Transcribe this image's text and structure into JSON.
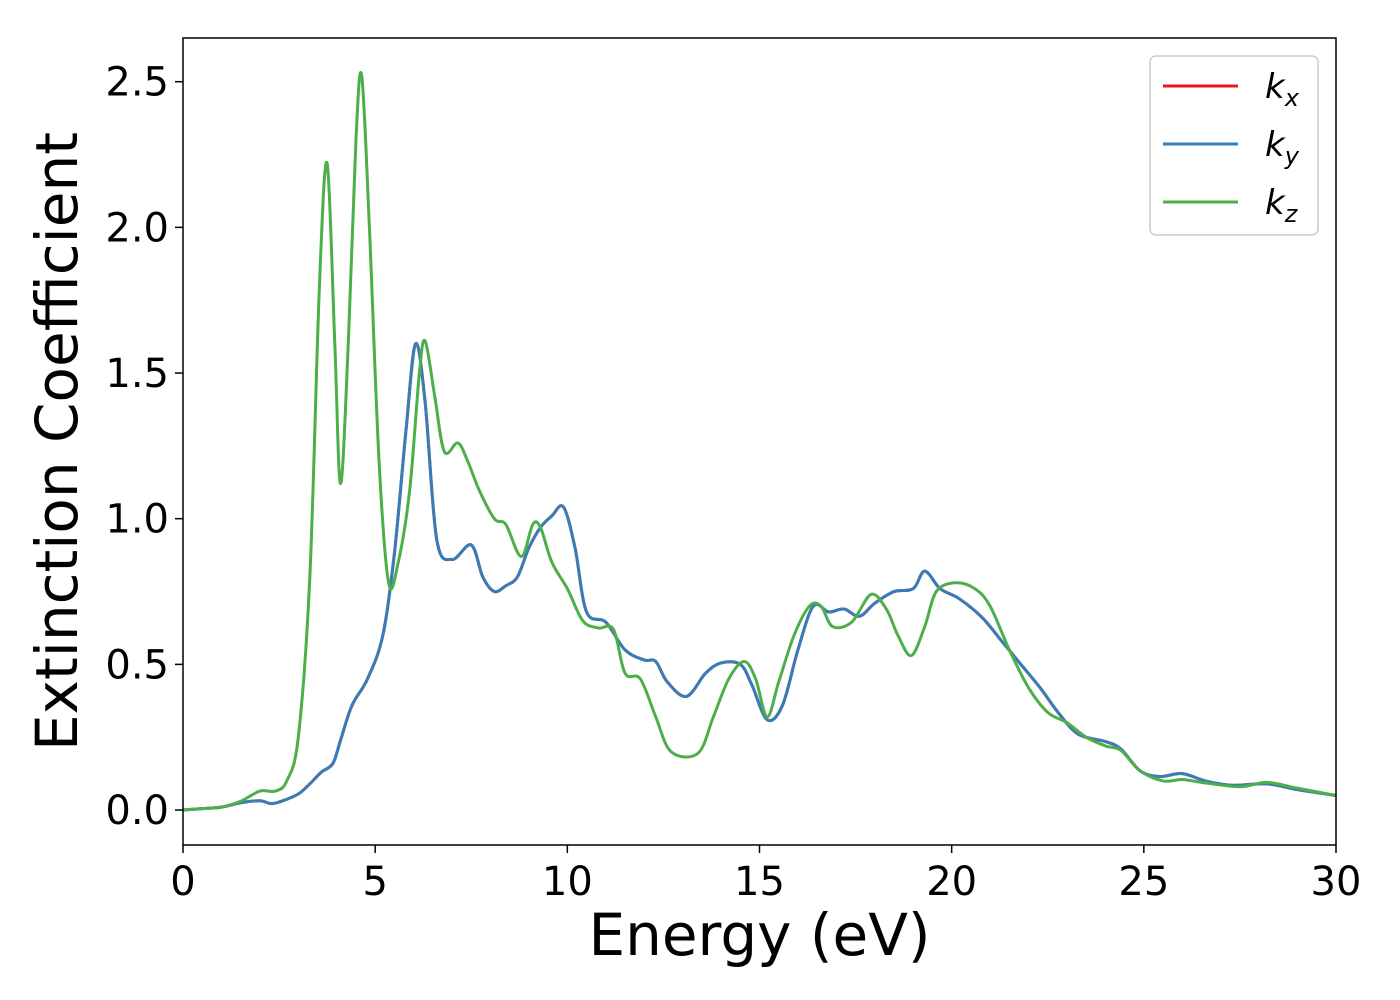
{
  "chart_data": {
    "type": "line",
    "title": "",
    "xlabel": "Energy (eV)",
    "ylabel": "Extinction Coefficient",
    "xlim": [
      0,
      30
    ],
    "ylim": [
      -0.12,
      2.65
    ],
    "xticks": [
      0,
      5,
      10,
      15,
      20,
      25,
      30
    ],
    "yticks": [
      0.0,
      0.5,
      1.0,
      1.5,
      2.0,
      2.5
    ],
    "xtick_labels": [
      "0",
      "5",
      "10",
      "15",
      "20",
      "25",
      "30"
    ],
    "ytick_labels": [
      "0.0",
      "0.5",
      "1.0",
      "1.5",
      "2.0",
      "2.5"
    ],
    "grid": false,
    "legend_position": "top-right",
    "series": [
      {
        "name": "k_x",
        "label_main": "k",
        "label_sub": "x",
        "color": "#e41a1c",
        "points": [
          [
            0,
            0
          ],
          [
            0.5,
            0.005
          ],
          [
            1,
            0.01
          ],
          [
            1.5,
            0.025
          ],
          [
            2,
            0.032
          ],
          [
            2.3,
            0.022
          ],
          [
            2.6,
            0.032
          ],
          [
            3,
            0.055
          ],
          [
            3.3,
            0.09
          ],
          [
            3.6,
            0.13
          ],
          [
            3.9,
            0.16
          ],
          [
            4.1,
            0.24
          ],
          [
            4.4,
            0.36
          ],
          [
            4.8,
            0.45
          ],
          [
            5.2,
            0.6
          ],
          [
            5.5,
            0.88
          ],
          [
            5.8,
            1.3
          ],
          [
            6.05,
            1.6
          ],
          [
            6.3,
            1.4
          ],
          [
            6.6,
            0.93
          ],
          [
            7.0,
            0.86
          ],
          [
            7.5,
            0.91
          ],
          [
            7.8,
            0.8
          ],
          [
            8.1,
            0.75
          ],
          [
            8.4,
            0.77
          ],
          [
            8.7,
            0.8
          ],
          [
            9.0,
            0.9
          ],
          [
            9.3,
            0.97
          ],
          [
            9.6,
            1.01
          ],
          [
            9.9,
            1.04
          ],
          [
            10.2,
            0.9
          ],
          [
            10.5,
            0.68
          ],
          [
            11.0,
            0.645
          ],
          [
            11.5,
            0.55
          ],
          [
            12.0,
            0.515
          ],
          [
            12.3,
            0.51
          ],
          [
            12.6,
            0.44
          ],
          [
            13.1,
            0.39
          ],
          [
            13.6,
            0.47
          ],
          [
            14.0,
            0.505
          ],
          [
            14.5,
            0.5
          ],
          [
            14.8,
            0.43
          ],
          [
            15.2,
            0.31
          ],
          [
            15.6,
            0.36
          ],
          [
            16.0,
            0.55
          ],
          [
            16.4,
            0.7
          ],
          [
            16.8,
            0.68
          ],
          [
            17.2,
            0.69
          ],
          [
            17.6,
            0.665
          ],
          [
            18.0,
            0.71
          ],
          [
            18.5,
            0.75
          ],
          [
            19.0,
            0.76
          ],
          [
            19.3,
            0.82
          ],
          [
            19.7,
            0.76
          ],
          [
            20.2,
            0.725
          ],
          [
            20.8,
            0.66
          ],
          [
            21.3,
            0.58
          ],
          [
            21.8,
            0.5
          ],
          [
            22.3,
            0.42
          ],
          [
            22.8,
            0.33
          ],
          [
            23.3,
            0.26
          ],
          [
            24.0,
            0.235
          ],
          [
            24.4,
            0.21
          ],
          [
            24.9,
            0.135
          ],
          [
            25.4,
            0.115
          ],
          [
            26.0,
            0.125
          ],
          [
            26.6,
            0.1
          ],
          [
            27.3,
            0.085
          ],
          [
            28.2,
            0.09
          ],
          [
            29.0,
            0.07
          ],
          [
            30,
            0.05
          ]
        ]
      },
      {
        "name": "k_y",
        "label_main": "k",
        "label_sub": "y",
        "color": "#377eb8",
        "points": [
          [
            0,
            0
          ],
          [
            0.5,
            0.005
          ],
          [
            1,
            0.01
          ],
          [
            1.5,
            0.025
          ],
          [
            2,
            0.032
          ],
          [
            2.3,
            0.022
          ],
          [
            2.6,
            0.032
          ],
          [
            3,
            0.055
          ],
          [
            3.3,
            0.09
          ],
          [
            3.6,
            0.13
          ],
          [
            3.9,
            0.16
          ],
          [
            4.1,
            0.24
          ],
          [
            4.4,
            0.36
          ],
          [
            4.8,
            0.45
          ],
          [
            5.2,
            0.6
          ],
          [
            5.5,
            0.88
          ],
          [
            5.8,
            1.3
          ],
          [
            6.05,
            1.6
          ],
          [
            6.3,
            1.4
          ],
          [
            6.6,
            0.93
          ],
          [
            7.0,
            0.86
          ],
          [
            7.5,
            0.91
          ],
          [
            7.8,
            0.8
          ],
          [
            8.1,
            0.75
          ],
          [
            8.4,
            0.77
          ],
          [
            8.7,
            0.8
          ],
          [
            9.0,
            0.9
          ],
          [
            9.3,
            0.97
          ],
          [
            9.6,
            1.01
          ],
          [
            9.9,
            1.04
          ],
          [
            10.2,
            0.9
          ],
          [
            10.5,
            0.68
          ],
          [
            11.0,
            0.645
          ],
          [
            11.5,
            0.55
          ],
          [
            12.0,
            0.515
          ],
          [
            12.3,
            0.51
          ],
          [
            12.6,
            0.44
          ],
          [
            13.1,
            0.39
          ],
          [
            13.6,
            0.47
          ],
          [
            14.0,
            0.505
          ],
          [
            14.5,
            0.5
          ],
          [
            14.8,
            0.43
          ],
          [
            15.2,
            0.31
          ],
          [
            15.6,
            0.36
          ],
          [
            16.0,
            0.55
          ],
          [
            16.4,
            0.7
          ],
          [
            16.8,
            0.68
          ],
          [
            17.2,
            0.69
          ],
          [
            17.6,
            0.665
          ],
          [
            18.0,
            0.71
          ],
          [
            18.5,
            0.75
          ],
          [
            19.0,
            0.76
          ],
          [
            19.3,
            0.82
          ],
          [
            19.7,
            0.76
          ],
          [
            20.2,
            0.725
          ],
          [
            20.8,
            0.66
          ],
          [
            21.3,
            0.58
          ],
          [
            21.8,
            0.5
          ],
          [
            22.3,
            0.42
          ],
          [
            22.8,
            0.33
          ],
          [
            23.3,
            0.26
          ],
          [
            24.0,
            0.235
          ],
          [
            24.4,
            0.21
          ],
          [
            24.9,
            0.135
          ],
          [
            25.4,
            0.115
          ],
          [
            26.0,
            0.125
          ],
          [
            26.6,
            0.1
          ],
          [
            27.3,
            0.085
          ],
          [
            28.2,
            0.09
          ],
          [
            29.0,
            0.07
          ],
          [
            30,
            0.05
          ]
        ]
      },
      {
        "name": "k_z",
        "label_main": "k",
        "label_sub": "z",
        "color": "#4daf4a",
        "points": [
          [
            0,
            0
          ],
          [
            0.5,
            0.005
          ],
          [
            1,
            0.01
          ],
          [
            1.5,
            0.03
          ],
          [
            2,
            0.065
          ],
          [
            2.4,
            0.065
          ],
          [
            2.7,
            0.1
          ],
          [
            3.0,
            0.25
          ],
          [
            3.3,
            0.8
          ],
          [
            3.55,
            1.8
          ],
          [
            3.75,
            2.22
          ],
          [
            3.95,
            1.6
          ],
          [
            4.1,
            1.12
          ],
          [
            4.3,
            1.6
          ],
          [
            4.5,
            2.3
          ],
          [
            4.65,
            2.52
          ],
          [
            4.85,
            2.0
          ],
          [
            5.1,
            1.2
          ],
          [
            5.35,
            0.78
          ],
          [
            5.6,
            0.85
          ],
          [
            5.9,
            1.1
          ],
          [
            6.15,
            1.5
          ],
          [
            6.3,
            1.61
          ],
          [
            6.55,
            1.42
          ],
          [
            6.8,
            1.23
          ],
          [
            7.15,
            1.26
          ],
          [
            7.4,
            1.2
          ],
          [
            7.7,
            1.1
          ],
          [
            8.1,
            1.0
          ],
          [
            8.4,
            0.98
          ],
          [
            8.8,
            0.87
          ],
          [
            9.1,
            0.98
          ],
          [
            9.3,
            0.97
          ],
          [
            9.6,
            0.85
          ],
          [
            10.0,
            0.76
          ],
          [
            10.4,
            0.65
          ],
          [
            10.8,
            0.625
          ],
          [
            11.2,
            0.62
          ],
          [
            11.5,
            0.47
          ],
          [
            11.9,
            0.45
          ],
          [
            12.3,
            0.32
          ],
          [
            12.7,
            0.2
          ],
          [
            13.4,
            0.195
          ],
          [
            13.8,
            0.32
          ],
          [
            14.2,
            0.45
          ],
          [
            14.6,
            0.51
          ],
          [
            14.9,
            0.45
          ],
          [
            15.2,
            0.32
          ],
          [
            15.5,
            0.44
          ],
          [
            15.9,
            0.6
          ],
          [
            16.3,
            0.7
          ],
          [
            16.6,
            0.7
          ],
          [
            16.9,
            0.63
          ],
          [
            17.4,
            0.645
          ],
          [
            17.9,
            0.74
          ],
          [
            18.3,
            0.69
          ],
          [
            18.6,
            0.6
          ],
          [
            18.95,
            0.53
          ],
          [
            19.3,
            0.63
          ],
          [
            19.6,
            0.75
          ],
          [
            20.1,
            0.78
          ],
          [
            20.6,
            0.76
          ],
          [
            21.0,
            0.7
          ],
          [
            21.5,
            0.55
          ],
          [
            22.0,
            0.42
          ],
          [
            22.5,
            0.335
          ],
          [
            23.0,
            0.3
          ],
          [
            23.5,
            0.25
          ],
          [
            24.0,
            0.22
          ],
          [
            24.4,
            0.205
          ],
          [
            24.9,
            0.135
          ],
          [
            25.5,
            0.1
          ],
          [
            26.0,
            0.105
          ],
          [
            26.5,
            0.095
          ],
          [
            27.5,
            0.08
          ],
          [
            28.2,
            0.095
          ],
          [
            29.0,
            0.075
          ],
          [
            30,
            0.05
          ]
        ]
      }
    ]
  }
}
